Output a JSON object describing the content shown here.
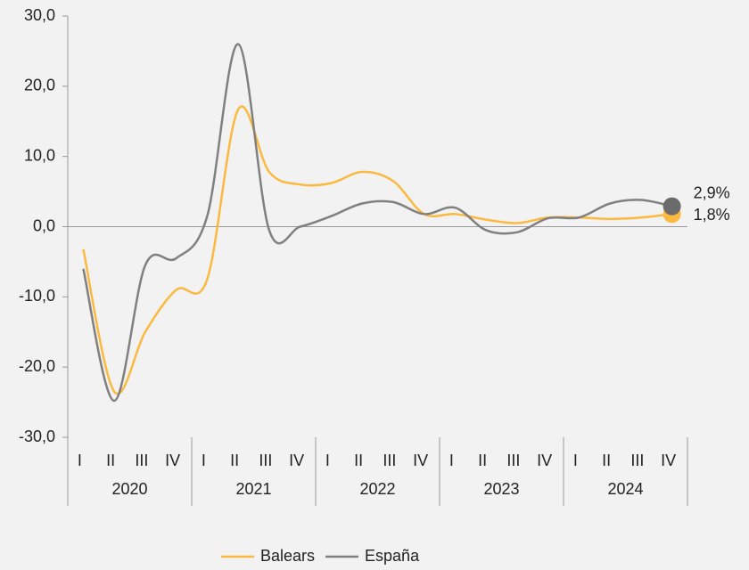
{
  "chart_data": {
    "type": "line",
    "categories": [
      "I",
      "II",
      "III",
      "IV",
      "I",
      "II",
      "III",
      "IV",
      "I",
      "II",
      "III",
      "IV",
      "I",
      "II",
      "III",
      "IV",
      "I",
      "II",
      "III",
      "IV"
    ],
    "year_groups": [
      "2020",
      "2021",
      "2022",
      "2023",
      "2024"
    ],
    "series": [
      {
        "name": "Balears",
        "color": "#fbb940",
        "values": [
          -3.2,
          -23.5,
          -15,
          -9,
          -7.5,
          16.7,
          7.8,
          6.0,
          6.2,
          7.8,
          6.5,
          1.8,
          1.8,
          1.0,
          0.5,
          1.3,
          1.3,
          1.1,
          1.3,
          1.8
        ],
        "value_labels": [
          null,
          null,
          null,
          null,
          null,
          null,
          null,
          null,
          null,
          null,
          null,
          null,
          null,
          null,
          null,
          null,
          null,
          null,
          null,
          "1,8%"
        ]
      },
      {
        "name": "España",
        "color": "#808080",
        "marker_color": "#6b6b6b",
        "values": [
          -6,
          -24.8,
          -5.5,
          -4.5,
          1.5,
          26,
          -0.5,
          0.0,
          1.5,
          3.3,
          3.5,
          1.8,
          2.7,
          -0.5,
          -0.8,
          1.2,
          1.3,
          3.3,
          3.8,
          2.9
        ],
        "value_labels": [
          null,
          null,
          null,
          null,
          null,
          null,
          null,
          null,
          null,
          null,
          null,
          null,
          null,
          null,
          null,
          null,
          null,
          null,
          null,
          "2,9%"
        ]
      }
    ],
    "ylim": [
      -30,
      30
    ],
    "yticks": [
      {
        "value": -30,
        "label": "-30,0"
      },
      {
        "value": -20,
        "label": "-20,0"
      },
      {
        "value": -10,
        "label": "-10,0"
      },
      {
        "value": 0,
        "label": "0,0"
      },
      {
        "value": 10,
        "label": "10,0"
      },
      {
        "value": 20,
        "label": "20,0"
      },
      {
        "value": 30,
        "label": "30,0"
      }
    ],
    "legend": "bottom"
  }
}
